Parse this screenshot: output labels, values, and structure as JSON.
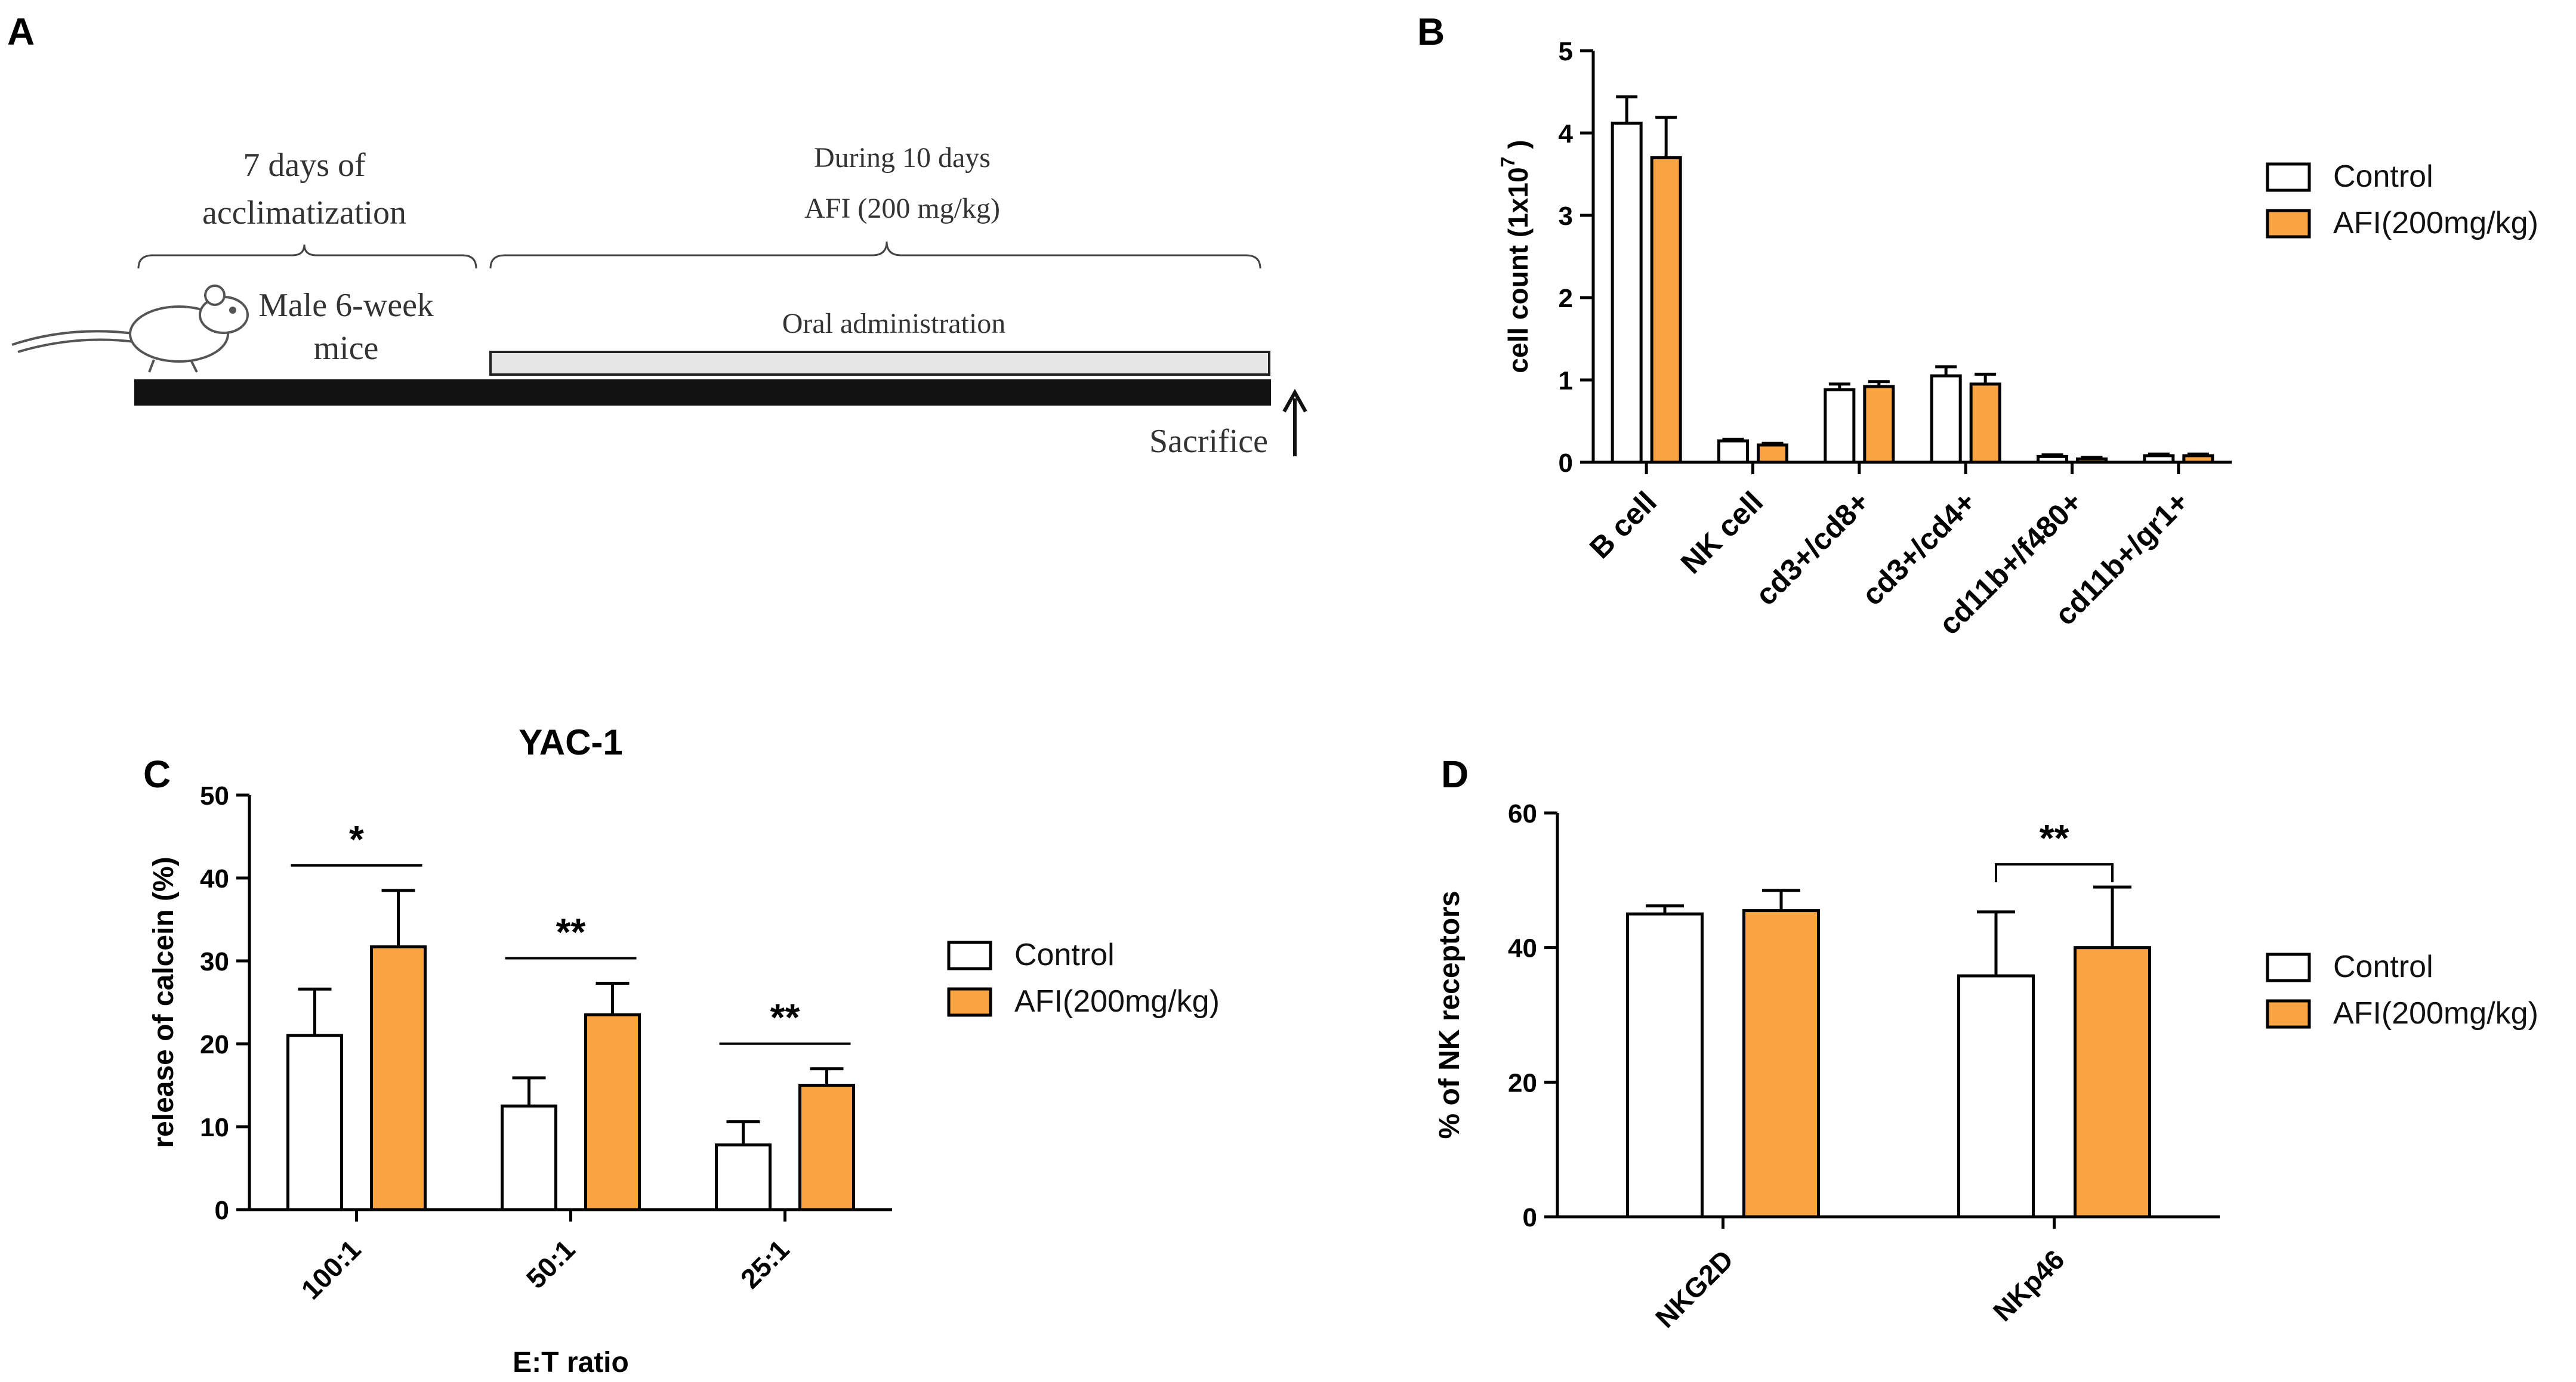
{
  "colors": {
    "control": "#ffffff",
    "afi": "#f9a342",
    "stroke": "#000000",
    "text": "#000000"
  },
  "panel_a": {
    "letter": "A",
    "acclimatization": [
      "7 days of",
      "acclimatization"
    ],
    "mice": [
      "Male 6-week",
      "mice"
    ],
    "during": "During 10 days",
    "afi_dose": "AFI   (200 mg/kg)",
    "oral": "Oral administration",
    "sacrifice": "Sacrifice"
  },
  "chart_data": [
    {
      "panel": "B",
      "type": "bar",
      "title": "",
      "xlabel": "",
      "ylabel": "cell count (1x10",
      "ylabel_sup": "7",
      "ylabel_tail": " )",
      "ylim": [
        0,
        5
      ],
      "yticks": [
        "0",
        "1",
        "2",
        "3",
        "4",
        "5"
      ],
      "categories": [
        "B cell",
        "NK cell",
        "cd3+/cd8+",
        "cd3+/cd4+",
        "cd11b+/f480+",
        "cd11b+/gr1+"
      ],
      "series": [
        {
          "name": "Control",
          "values": [
            4.12,
            0.26,
            0.88,
            1.05,
            0.07,
            0.08
          ],
          "errors": [
            0.32,
            0.02,
            0.07,
            0.11,
            0.02,
            0.02
          ]
        },
        {
          "name": "AFI(200mg/kg)",
          "values": [
            3.7,
            0.21,
            0.92,
            0.95,
            0.04,
            0.08
          ],
          "errors": [
            0.49,
            0.02,
            0.06,
            0.12,
            0.02,
            0.02
          ]
        }
      ],
      "legend": [
        "Control",
        "AFI(200mg/kg)"
      ]
    },
    {
      "panel": "C",
      "type": "bar",
      "title": "YAC-1",
      "xlabel": "E:T ratio",
      "ylabel": "release of calcein (%)",
      "ylim": [
        0,
        50
      ],
      "yticks": [
        "0",
        "10",
        "20",
        "30",
        "40",
        "50"
      ],
      "categories": [
        "100:1",
        "50:1",
        "25:1"
      ],
      "series": [
        {
          "name": "Control",
          "values": [
            21,
            12.5,
            7.8
          ],
          "errors": [
            5.6,
            3.4,
            2.8
          ]
        },
        {
          "name": "AFI(200mg/kg)",
          "values": [
            31.7,
            23.5,
            15
          ],
          "errors": [
            6.8,
            3.8,
            2
          ]
        }
      ],
      "significance": [
        "*",
        "**",
        "**"
      ],
      "legend": [
        "Control",
        "AFI(200mg/kg)"
      ]
    },
    {
      "panel": "D",
      "type": "bar",
      "title": "",
      "xlabel": "",
      "ylabel": "% of NK receptors",
      "ylim": [
        0,
        60
      ],
      "yticks": [
        "0",
        "20",
        "40",
        "60"
      ],
      "categories": [
        "NKG2D",
        "NKp46"
      ],
      "series": [
        {
          "name": "Control",
          "values": [
            45,
            35.8
          ],
          "errors": [
            1.2,
            9.5
          ]
        },
        {
          "name": "AFI(200mg/kg)",
          "values": [
            45.5,
            40
          ],
          "errors": [
            3,
            9
          ]
        }
      ],
      "significance": [
        "",
        "**"
      ],
      "legend": [
        "Control",
        "AFI(200mg/kg)"
      ]
    }
  ]
}
